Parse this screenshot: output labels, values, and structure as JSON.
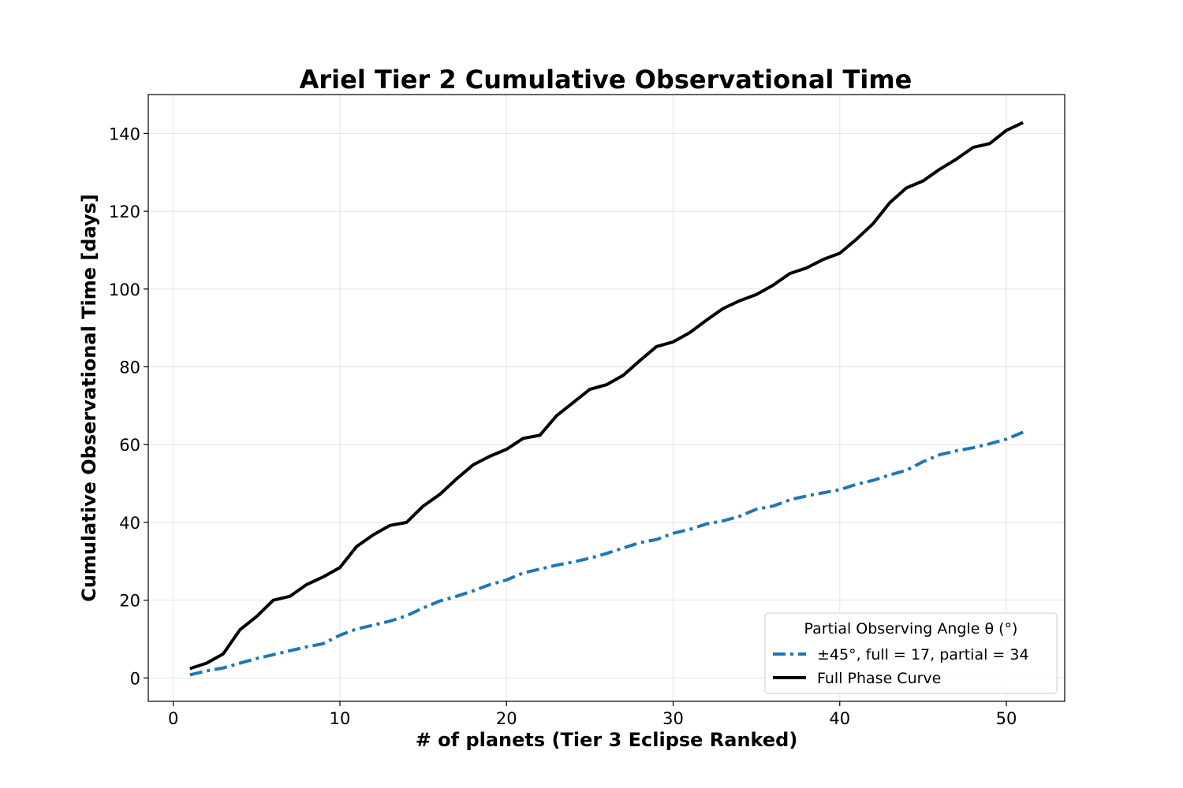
{
  "chart_data": {
    "type": "line",
    "title": "Ariel Tier 2 Cumulative Observational Time",
    "xlabel": "# of planets (Tier 3 Eclipse Ranked)",
    "ylabel": "Cumulative Observational Time [days]",
    "xlim": [
      -1.5,
      53.5
    ],
    "ylim": [
      -6,
      150
    ],
    "x_ticks": [
      "0",
      "10",
      "20",
      "30",
      "40",
      "50"
    ],
    "y_ticks": [
      "0",
      "20",
      "40",
      "60",
      "80",
      "100",
      "120",
      "140"
    ],
    "grid": true,
    "legend": {
      "title": "Partial Observing Angle θ (°)",
      "placement": "lower right",
      "entries": [
        "±45°, full = 17, partial = 34",
        "Full Phase Curve"
      ]
    },
    "x": [
      1,
      2,
      3,
      4,
      5,
      6,
      7,
      8,
      9,
      10,
      11,
      12,
      13,
      14,
      15,
      16,
      17,
      18,
      19,
      20,
      21,
      22,
      23,
      24,
      25,
      26,
      27,
      28,
      29,
      30,
      31,
      32,
      33,
      34,
      35,
      36,
      37,
      38,
      39,
      40,
      41,
      42,
      43,
      44,
      45,
      46,
      47,
      48,
      49,
      50,
      51
    ],
    "series": [
      {
        "name": "±45°, full = 17, partial = 34",
        "color": "#1f77b4",
        "style": "dashdot",
        "values": [
          0.8,
          1.8,
          2.6,
          3.8,
          5.0,
          6.0,
          7.0,
          8.0,
          8.8,
          11.0,
          12.6,
          13.6,
          14.6,
          16.0,
          18.0,
          19.8,
          21.0,
          22.4,
          24.0,
          25.2,
          27.0,
          28.0,
          29.0,
          29.8,
          30.8,
          32.0,
          33.4,
          34.8,
          35.6,
          37.2,
          38.2,
          39.6,
          40.4,
          41.6,
          43.4,
          44.2,
          45.8,
          46.8,
          47.6,
          48.4,
          49.8,
          50.8,
          52.2,
          53.4,
          55.6,
          57.4,
          58.4,
          59.2,
          60.2,
          61.4,
          63.2
        ]
      },
      {
        "name": "Full Phase Curve",
        "color": "#000000",
        "style": "solid",
        "values": [
          2.4,
          3.8,
          6.2,
          12.4,
          15.8,
          20.0,
          21.0,
          24.0,
          26.0,
          28.4,
          33.8,
          36.8,
          39.2,
          40.0,
          44.2,
          47.2,
          51.2,
          54.8,
          57.0,
          58.8,
          61.6,
          62.4,
          67.4,
          70.8,
          74.2,
          75.4,
          77.8,
          81.6,
          85.2,
          86.4,
          88.8,
          92.0,
          95.0,
          97.0,
          98.6,
          101.0,
          104.0,
          105.4,
          107.6,
          109.2,
          112.8,
          116.8,
          122.2,
          126.0,
          127.8,
          130.8,
          133.4,
          136.4,
          137.4,
          140.8,
          142.8
        ]
      }
    ]
  }
}
